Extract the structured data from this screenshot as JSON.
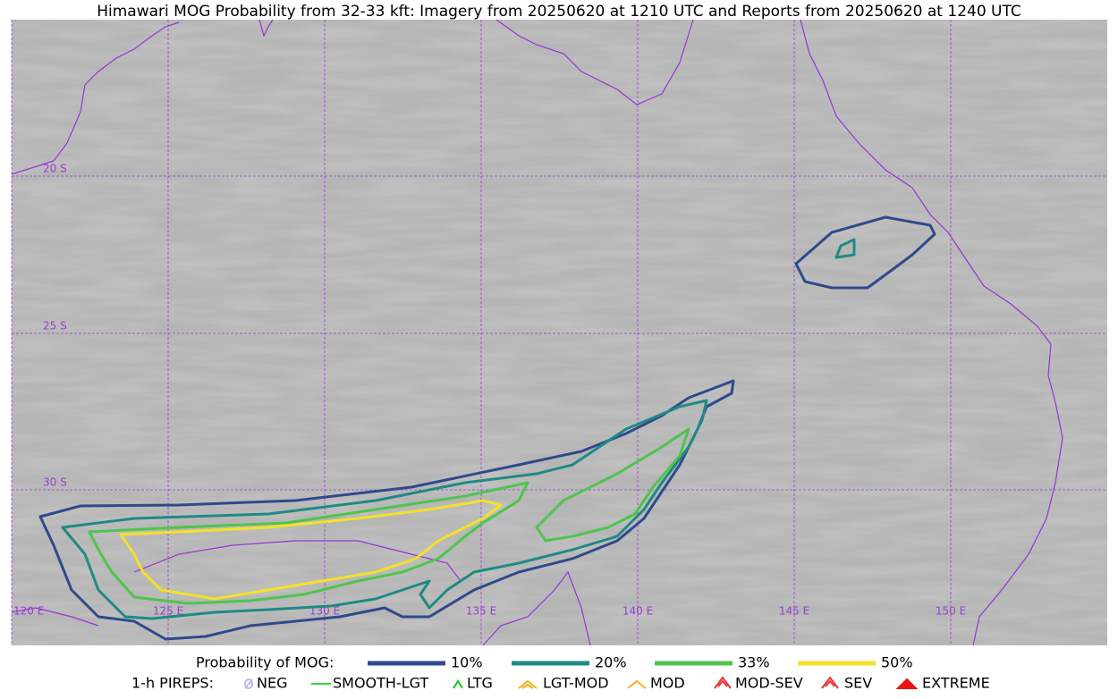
{
  "title": "Himawari MOG Probability from 32-33 kft: Imagery from 20250620 at 1210 UTC and Reports from 20250620 at 1240 UTC",
  "grid_labels": {
    "lat": [
      "20 S",
      "25 S",
      "30 S"
    ],
    "lon": [
      "120 E",
      "125 E",
      "130 E",
      "135 E",
      "140 E",
      "145 E",
      "150 E"
    ]
  },
  "legend": {
    "probability": {
      "label": "Probability of MOG:",
      "items": [
        {
          "label": "10%",
          "color": "#2f4a8c"
        },
        {
          "label": "20%",
          "color": "#1f8a85"
        },
        {
          "label": "33%",
          "color": "#4fc44f"
        },
        {
          "label": "50%",
          "color": "#f5e12a"
        }
      ]
    },
    "pireps": {
      "label": "1-h PIREPS:",
      "items": [
        {
          "label": "NEG",
          "color": "#b9b9f5"
        },
        {
          "label": "SMOOTH-LGT",
          "color": "#33dd33"
        },
        {
          "label": "LTG",
          "color": "#11cc11"
        },
        {
          "label": "LGT-MOD",
          "color": "#f2b01e"
        },
        {
          "label": "MOD",
          "color": "#f2b01e"
        },
        {
          "label": "MOD-SEV",
          "color": "#ee3333"
        },
        {
          "label": "SEV",
          "color": "#ee3333"
        },
        {
          "label": "EXTREME",
          "color": "#ee1111"
        }
      ]
    }
  }
}
